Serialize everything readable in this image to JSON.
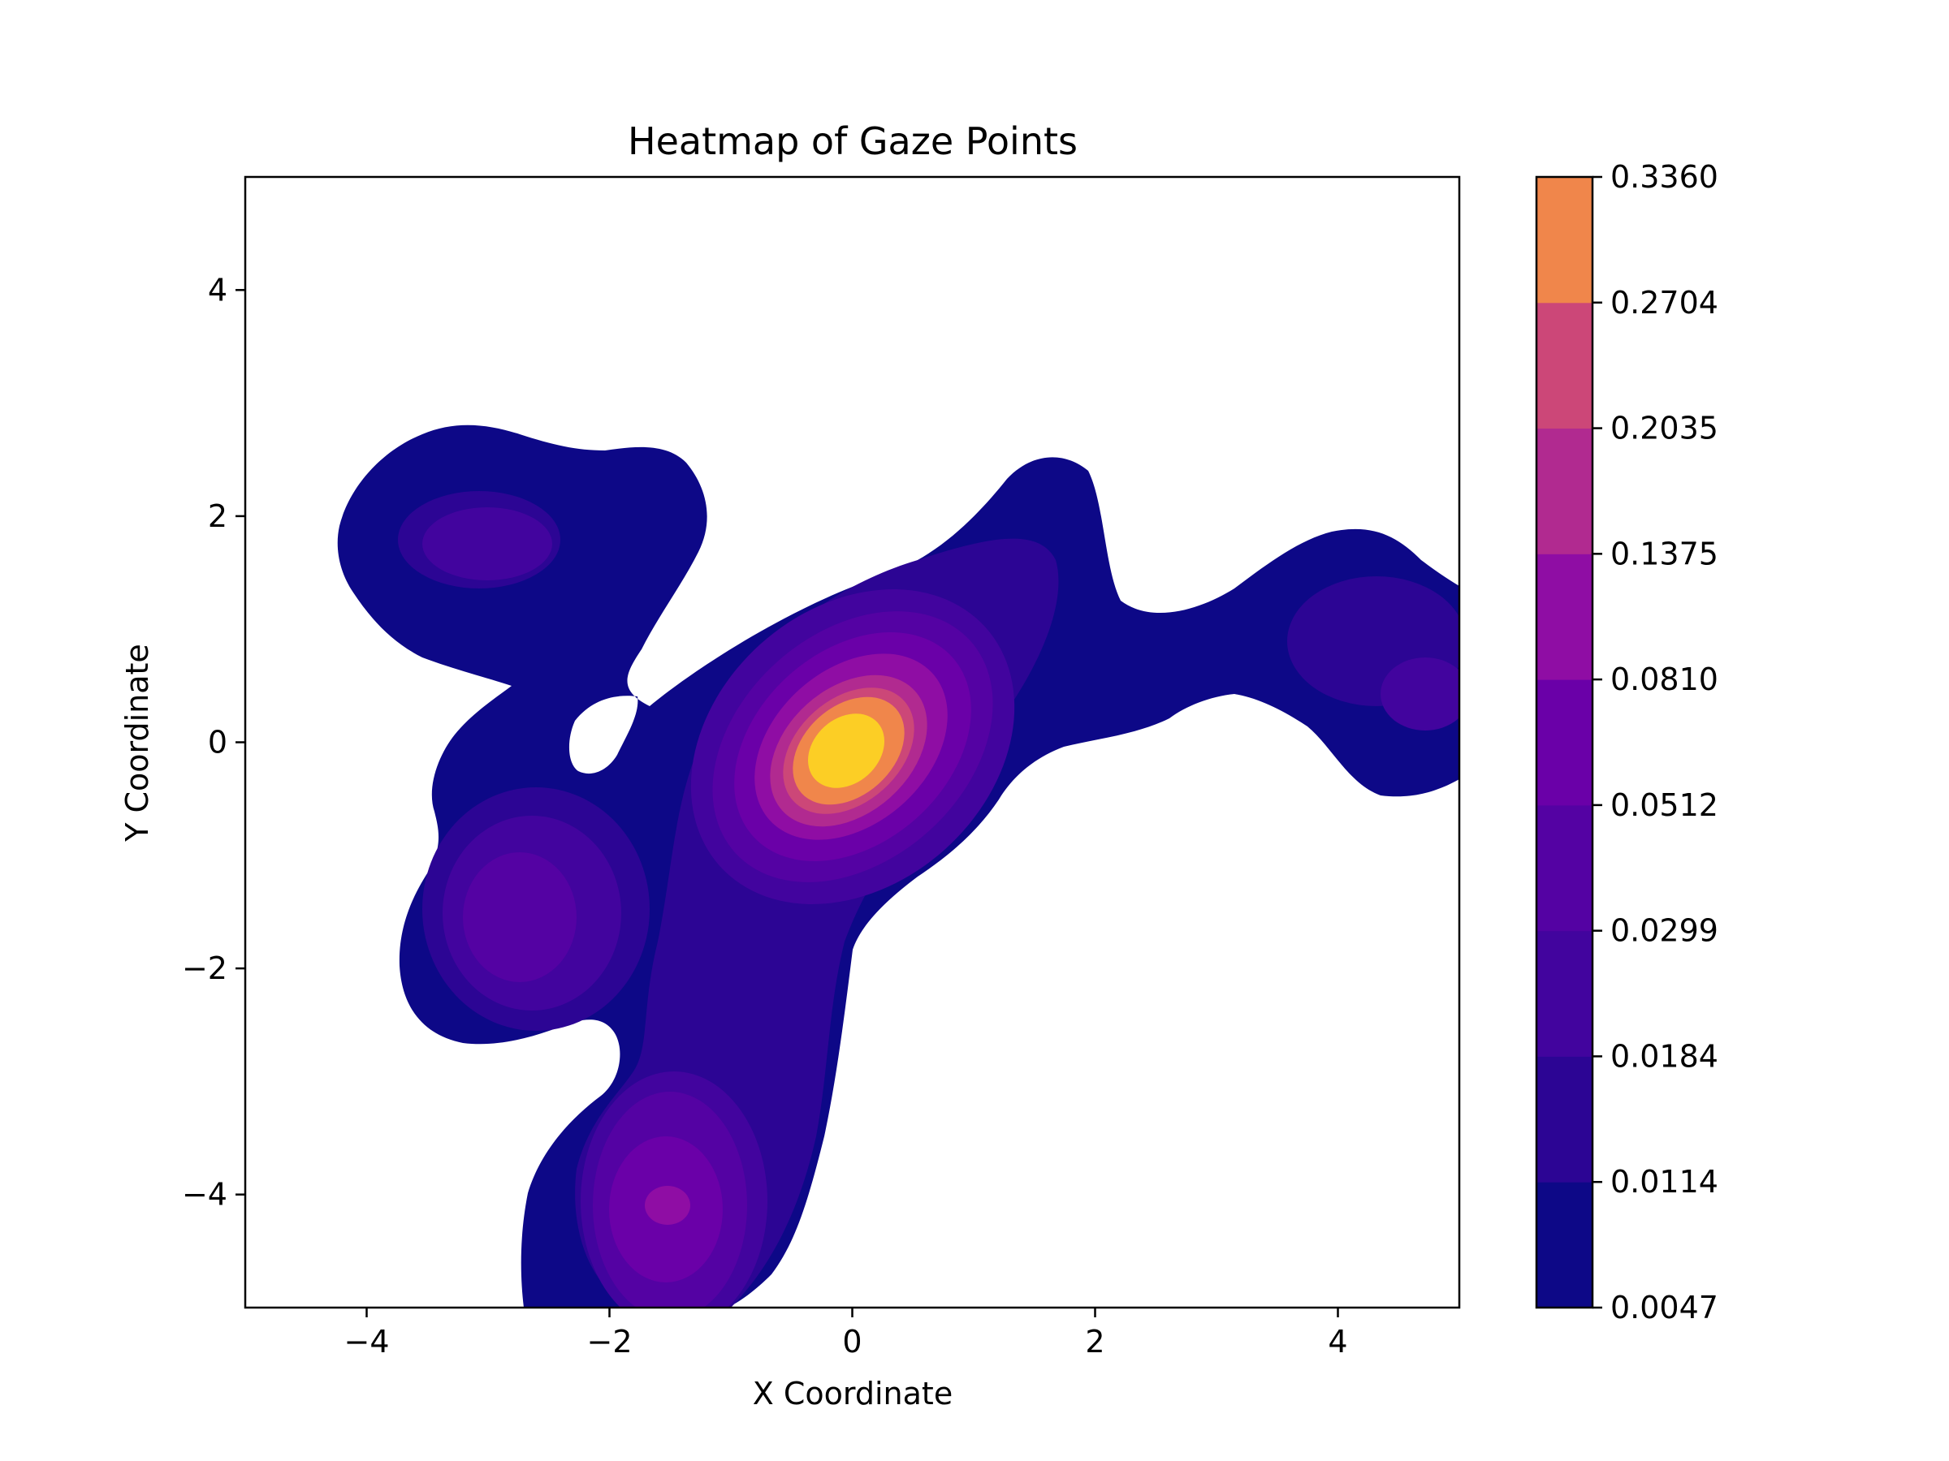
{
  "chart_data": {
    "type": "heatmap",
    "subtype": "filled-contour (KDE)",
    "title": "Heatmap of Gaze Points",
    "xlabel": "X Coordinate",
    "ylabel": "Y Coordinate",
    "xlim": [
      -5,
      5
    ],
    "ylim": [
      -5,
      5
    ],
    "xticks": [
      -4,
      -2,
      0,
      2,
      4
    ],
    "yticks": [
      -4,
      -2,
      0,
      2,
      4
    ],
    "grid": false,
    "colormap": "plasma",
    "colorbar": {
      "levels": [
        "0.0047",
        "0.0114",
        "0.0184",
        "0.0299",
        "0.0512",
        "0.0810",
        "0.1375",
        "0.2035",
        "0.2704",
        "0.3360"
      ],
      "colors": [
        "#0d0887",
        "#2c0594",
        "#42049e",
        "#5402a3",
        "#6a00a8",
        "#8f0da4",
        "#b12a90",
        "#cc4778",
        "#f0864b",
        "#fcce25"
      ]
    },
    "density_peaks": [
      {
        "x": 0.0,
        "y": -0.15,
        "value": 0.33
      },
      {
        "x": -1.55,
        "y": -4.15,
        "value": 0.11
      },
      {
        "x": -2.7,
        "y": -1.6,
        "value": 0.05
      },
      {
        "x": -3.0,
        "y": 1.7,
        "value": 0.03
      },
      {
        "x": 4.6,
        "y": 0.4,
        "value": 0.03
      },
      {
        "x": 4.2,
        "y": 1.0,
        "value": 0.02
      }
    ]
  }
}
